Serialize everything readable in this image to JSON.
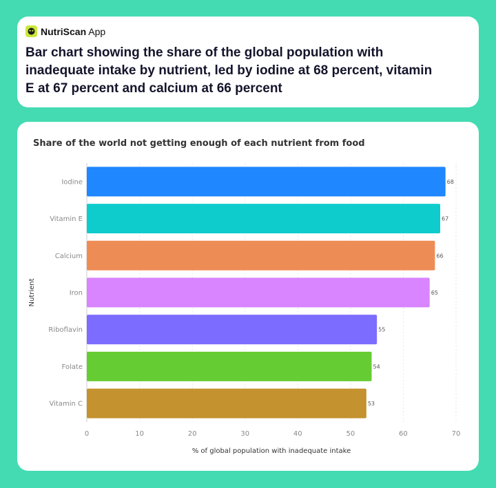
{
  "app": {
    "name_bold": "NutriScan",
    "name_rest": "App",
    "logo_icon": "blob-face-icon",
    "accent": "#c9e83a"
  },
  "headline": "Bar chart showing the share of the global population with inadequate intake by nutrient, led by iodine at 68 percent, vitamin E at 67 percent and calcium at 66 percent",
  "chart_data": {
    "type": "bar",
    "orientation": "horizontal",
    "title": "Share of the world not getting enough of each nutrient from food",
    "xlabel": "% of global population with inadequate intake",
    "ylabel": "Nutrient",
    "categories": [
      "Iodine",
      "Vitamin E",
      "Calcium",
      "Iron",
      "Riboflavin",
      "Folate",
      "Vitamin C"
    ],
    "values": [
      68,
      67,
      66,
      65,
      55,
      54,
      53
    ],
    "colors": [
      "#1f87ff",
      "#0ecccc",
      "#ee8c55",
      "#d885ff",
      "#7c6cff",
      "#66cc33",
      "#c4922e"
    ],
    "xlim": [
      0,
      70
    ],
    "xticks": [
      0,
      10,
      20,
      30,
      40,
      50,
      60,
      70
    ],
    "grid": "vertical-dashed",
    "data_labels": true
  }
}
